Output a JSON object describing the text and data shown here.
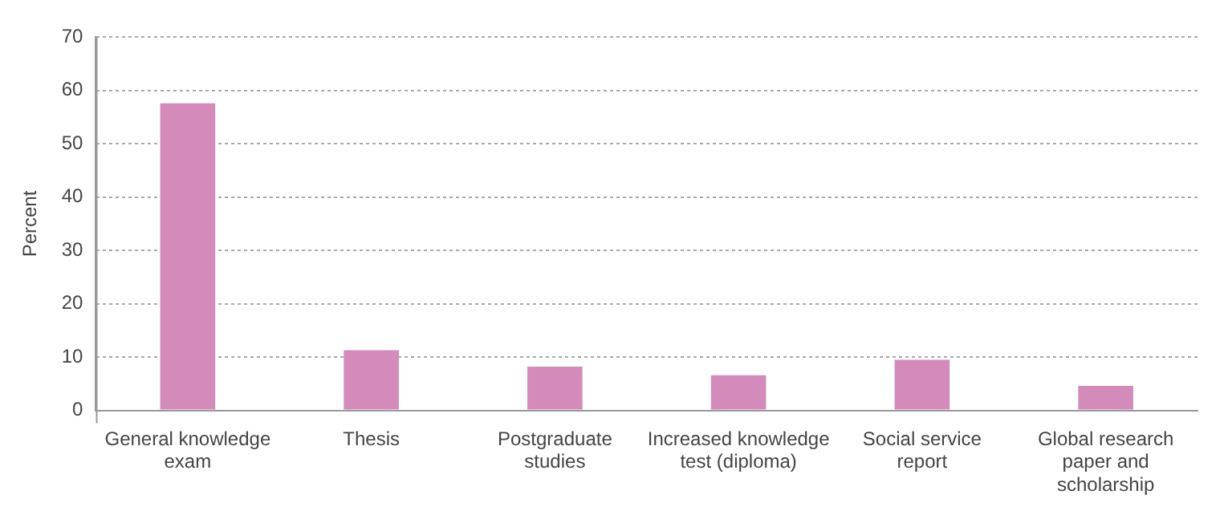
{
  "chart_data": {
    "type": "bar",
    "ylabel": "Percent",
    "categories": [
      "General knowledge exam",
      "Thesis",
      "Postgraduate studies",
      "Increased knowledge test (diploma)",
      "Social service report",
      "Global research paper and scholarship"
    ],
    "values": [
      57.6,
      11.3,
      8.2,
      6.6,
      9.5,
      4.6
    ],
    "color": "#d38bbb",
    "ylim": [
      0,
      70
    ],
    "yticks": [
      0,
      10,
      20,
      30,
      40,
      50,
      60,
      70
    ],
    "grid": "y"
  }
}
